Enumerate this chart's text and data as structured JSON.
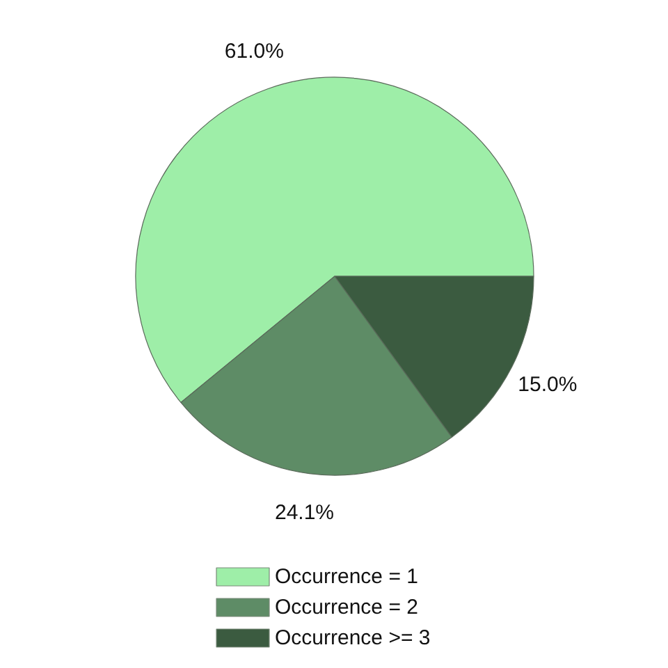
{
  "chart_data": {
    "type": "pie",
    "categories": [
      "Occurrence = 1",
      "Occurrence = 2",
      "Occurrence >= 3"
    ],
    "values": [
      61.0,
      24.1,
      15.0
    ],
    "colors": [
      "#9eeea8",
      "#5e8c66",
      "#3b5b40"
    ],
    "value_labels": [
      "61.0%",
      "24.1%",
      "15.0%"
    ],
    "legend": "bottom"
  }
}
